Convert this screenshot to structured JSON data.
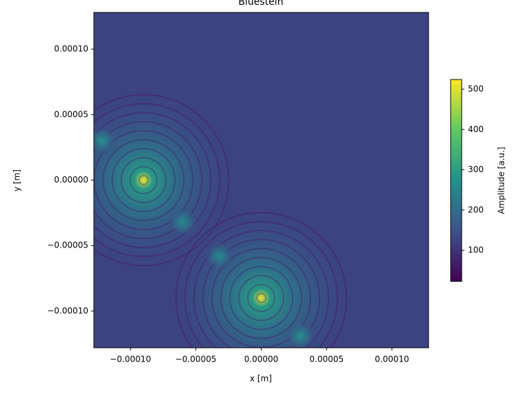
{
  "chart_data": {
    "type": "heatmap",
    "title": "Bluestein",
    "x_label": "x [m]",
    "y_label": "y [m]",
    "xlim": [
      -0.000128,
      0.000128
    ],
    "ylim": [
      -0.000128,
      0.000128
    ],
    "xticks": [
      {
        "value": -0.0001,
        "label": "−0.00010"
      },
      {
        "value": -5e-05,
        "label": "−0.00005"
      },
      {
        "value": 0,
        "label": "0.00000"
      },
      {
        "value": 5e-05,
        "label": "0.00005"
      },
      {
        "value": 0.0001,
        "label": "0.00010"
      }
    ],
    "yticks": [
      {
        "value": -0.0001,
        "label": "−0.00010"
      },
      {
        "value": -5e-05,
        "label": "−0.00005"
      },
      {
        "value": 0,
        "label": "0.00000"
      },
      {
        "value": 5e-05,
        "label": "0.00005"
      },
      {
        "value": 0.0001,
        "label": "0.00010"
      }
    ],
    "colormap": "viridis",
    "clim": [
      23,
      524
    ],
    "cticks": [
      100,
      200,
      300,
      400,
      500
    ],
    "colorbar_label": "Amplitude [a.u.]",
    "peaks": [
      {
        "x": -9e-05,
        "y": 0,
        "value": 510
      },
      {
        "x": 0,
        "y": -9e-05,
        "value": 510
      },
      {
        "x": -0.000122,
        "y": 3e-05,
        "value": 280
      },
      {
        "x": -6e-05,
        "y": -3.2e-05,
        "value": 270
      },
      {
        "x": -3.2e-05,
        "y": -5.8e-05,
        "value": 270
      },
      {
        "x": 3e-05,
        "y": -0.000119,
        "value": 280
      }
    ]
  }
}
